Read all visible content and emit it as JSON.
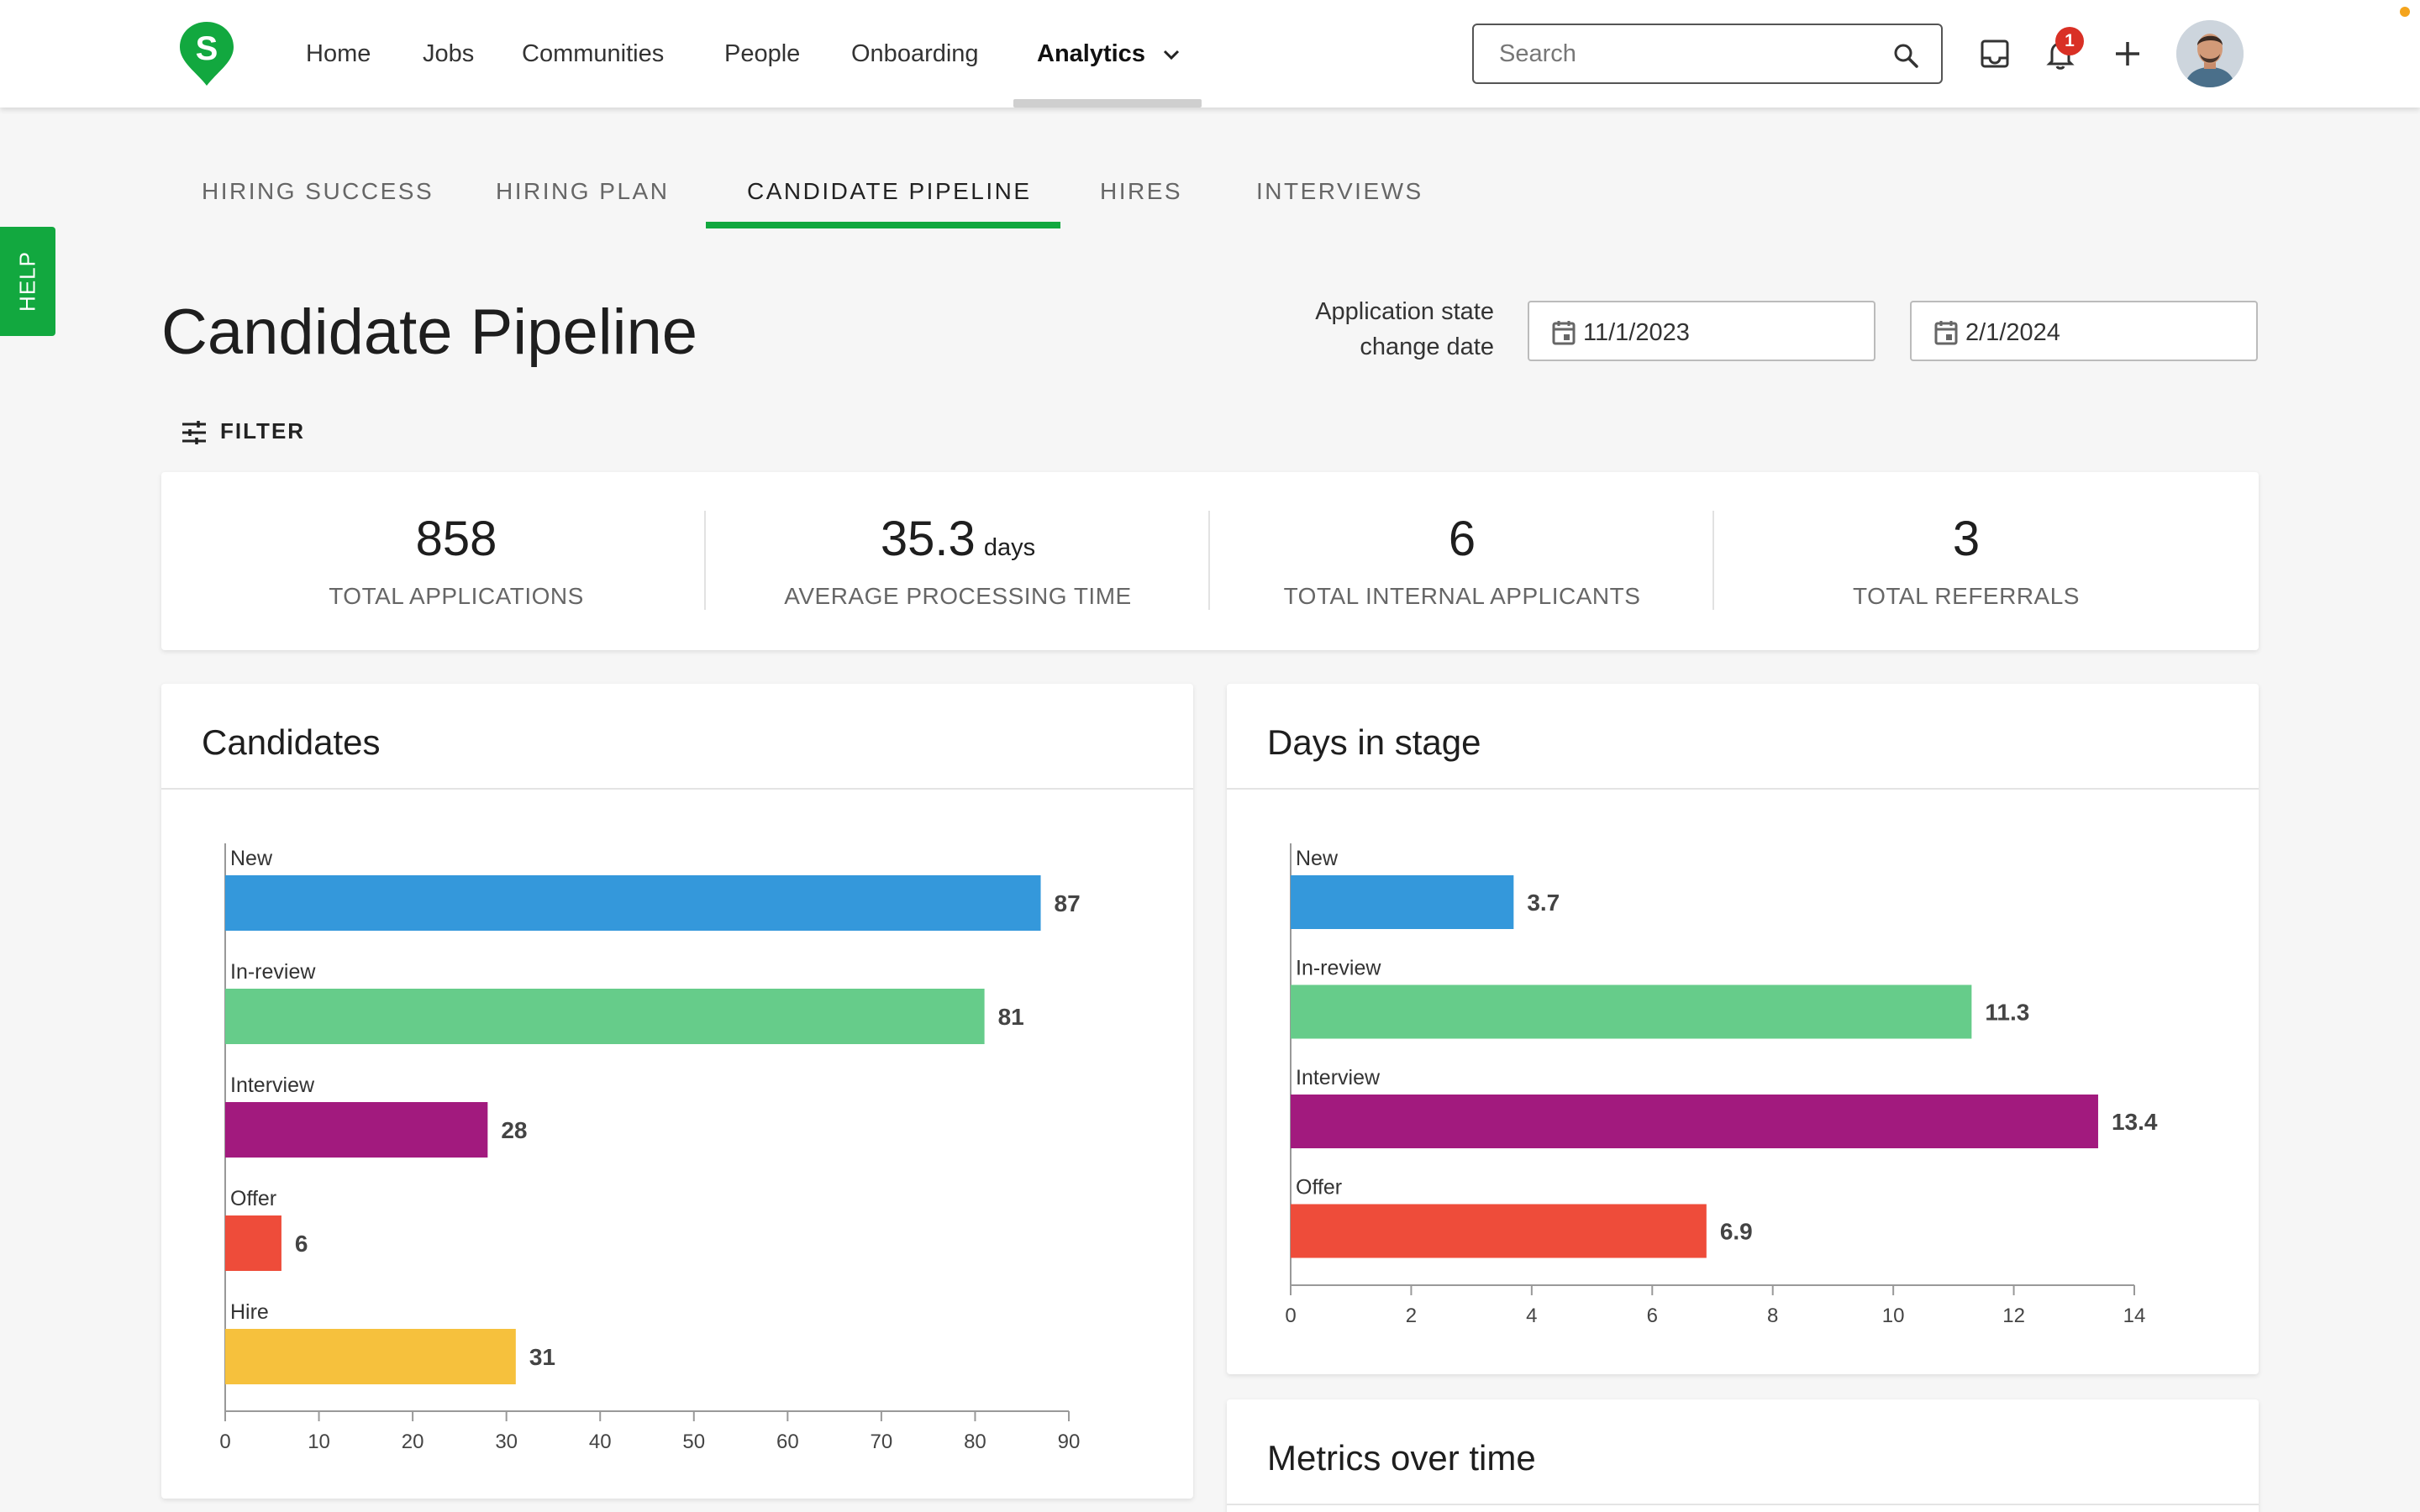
{
  "nav": {
    "items": [
      "Home",
      "Jobs",
      "Communities",
      "People",
      "Onboarding"
    ],
    "analytics_label": "Analytics",
    "search_placeholder": "Search",
    "notification_count": "1"
  },
  "help": {
    "label": "HELP"
  },
  "subtabs": [
    "HIRING SUCCESS",
    "HIRING PLAN",
    "CANDIDATE PIPELINE",
    "HIRES",
    "INTERVIEWS"
  ],
  "page": {
    "title": "Candidate Pipeline",
    "date_label_line1": "Application state",
    "date_label_line2": "change date",
    "start_date": "11/1/2023",
    "end_date": "2/1/2024",
    "filter_label": "FILTER"
  },
  "stats": [
    {
      "value": "858",
      "unit": "",
      "label": "TOTAL APPLICATIONS"
    },
    {
      "value": "35.3",
      "unit": "days",
      "label": "AVERAGE PROCESSING TIME"
    },
    {
      "value": "6",
      "unit": "",
      "label": "TOTAL INTERNAL APPLICANTS"
    },
    {
      "value": "3",
      "unit": "",
      "label": "TOTAL REFERRALS"
    }
  ],
  "colors": {
    "accent": "#12a83f",
    "new": "#3498db",
    "in_review": "#66cc8a",
    "interview": "#a21a7e",
    "offer": "#ee4c3a",
    "hire": "#f6c13d"
  },
  "cards": {
    "candidates_title": "Candidates",
    "days_title": "Days in stage",
    "metrics_title": "Metrics over time"
  },
  "chart_data": [
    {
      "type": "bar",
      "orientation": "horizontal",
      "title": "Candidates",
      "categories": [
        "New",
        "In-review",
        "Interview",
        "Offer",
        "Hire"
      ],
      "values": [
        87,
        81,
        28,
        6,
        31
      ],
      "xlim": [
        0,
        90
      ],
      "ticks": [
        0,
        10,
        20,
        30,
        40,
        50,
        60,
        70,
        80,
        90
      ],
      "bar_colors": [
        "#3498db",
        "#66cc8a",
        "#a21a7e",
        "#ee4c3a",
        "#f6c13d"
      ],
      "value_labels": [
        "87",
        "81",
        "28",
        "6",
        "31"
      ]
    },
    {
      "type": "bar",
      "orientation": "horizontal",
      "title": "Days in stage",
      "categories": [
        "New",
        "In-review",
        "Interview",
        "Offer"
      ],
      "values": [
        3.7,
        11.3,
        13.4,
        6.9
      ],
      "xlim": [
        0,
        14
      ],
      "ticks": [
        0,
        2,
        4,
        6,
        8,
        10,
        12,
        14
      ],
      "bar_colors": [
        "#3498db",
        "#66cc8a",
        "#a21a7e",
        "#ee4c3a"
      ],
      "value_labels": [
        "3.7",
        "11.3",
        "13.4",
        "6.9"
      ]
    }
  ]
}
